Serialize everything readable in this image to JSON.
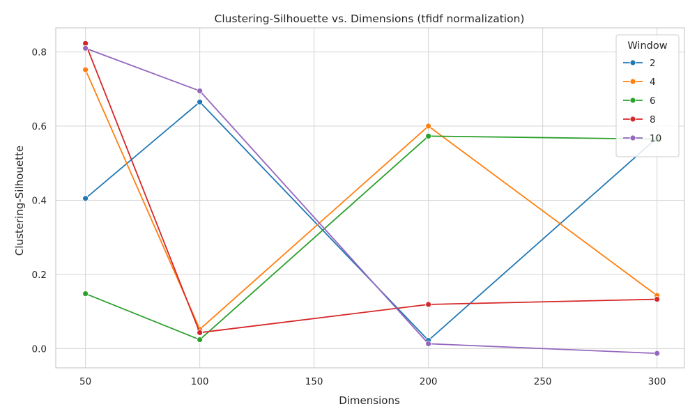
{
  "chart_data": {
    "type": "line",
    "title": "Clustering-Silhouette vs. Dimensions (tfidf normalization)",
    "xlabel": "Dimensions",
    "ylabel": "Clustering-Silhouette",
    "x": [
      50,
      100,
      200,
      300
    ],
    "xlim": [
      37,
      312
    ],
    "ylim": [
      -0.052,
      0.865
    ],
    "xticks": [
      50,
      100,
      150,
      200,
      250,
      300
    ],
    "yticks": [
      0.0,
      0.2,
      0.4,
      0.6,
      0.8
    ],
    "xtick_labels": [
      "50",
      "100",
      "150",
      "200",
      "250",
      "300"
    ],
    "ytick_labels": [
      "0.0",
      "0.2",
      "0.4",
      "0.6",
      "0.8"
    ],
    "grid": true,
    "legend": {
      "title": "Window",
      "placement": "top-right"
    },
    "series": [
      {
        "name": "2",
        "color": "#1f77b4",
        "values": [
          0.405,
          0.665,
          0.022,
          0.568
        ]
      },
      {
        "name": "4",
        "color": "#ff7f0e",
        "values": [
          0.752,
          0.052,
          0.6,
          0.143
        ]
      },
      {
        "name": "6",
        "color": "#2ca02c",
        "values": [
          0.148,
          0.024,
          0.573,
          0.565
        ]
      },
      {
        "name": "8",
        "color": "#d62728",
        "values": [
          0.823,
          0.043,
          0.119,
          0.133
        ]
      },
      {
        "name": "10",
        "color": "#9467bd",
        "values": [
          0.81,
          0.695,
          0.013,
          -0.013
        ]
      }
    ]
  }
}
